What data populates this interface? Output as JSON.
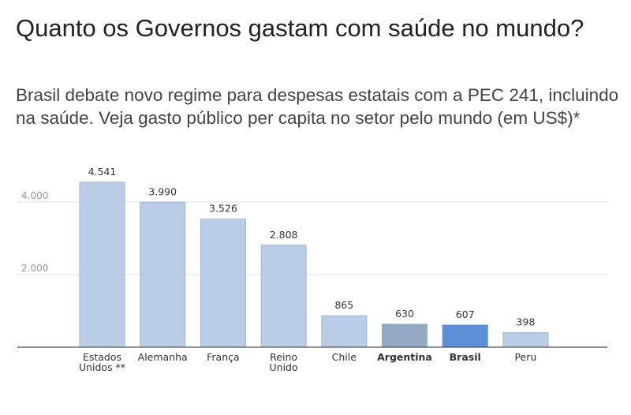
{
  "title": "Quanto os Governos gastam com saúde no mundo?",
  "subtitle": "Brasil debate novo regime para despesas estatais com a PEC 241, incluindo na saúde. Veja gasto público per capita no setor pelo mundo (em US$)*",
  "colors": {
    "bar_default": "#b9cde6",
    "bar_default_stroke": "#9fb5d2",
    "bar_argentina": "#94a9c3",
    "bar_brasil": "#5b8fd6",
    "grid": "#e3e3e3",
    "axis": "#555555"
  },
  "chart_data": {
    "type": "bar",
    "title": "",
    "xlabel": "",
    "ylabel": "",
    "ylim": [
      0,
      4541
    ],
    "grid": true,
    "yticks": [
      {
        "value": 2000,
        "label": "2.000"
      },
      {
        "value": 4000,
        "label": "4.000"
      }
    ],
    "categories": [
      {
        "lines": [
          "Estados",
          "Unidos **"
        ],
        "bold": false
      },
      {
        "lines": [
          "Alemanha"
        ],
        "bold": false
      },
      {
        "lines": [
          "França"
        ],
        "bold": false
      },
      {
        "lines": [
          "Reino",
          "Unido"
        ],
        "bold": false
      },
      {
        "lines": [
          "Chile"
        ],
        "bold": false
      },
      {
        "lines": [
          "Argentina"
        ],
        "bold": true
      },
      {
        "lines": [
          "Brasil"
        ],
        "bold": true
      },
      {
        "lines": [
          "Peru"
        ],
        "bold": false
      }
    ],
    "values": [
      4541,
      3990,
      3526,
      2808,
      865,
      630,
      607,
      398
    ],
    "value_labels": [
      "4.541",
      "3.990",
      "3.526",
      "2.808",
      "865",
      "630",
      "607",
      "398"
    ],
    "bar_colors": [
      "bar_default",
      "bar_default",
      "bar_default",
      "bar_default",
      "bar_default",
      "bar_argentina",
      "bar_brasil",
      "bar_default"
    ]
  }
}
